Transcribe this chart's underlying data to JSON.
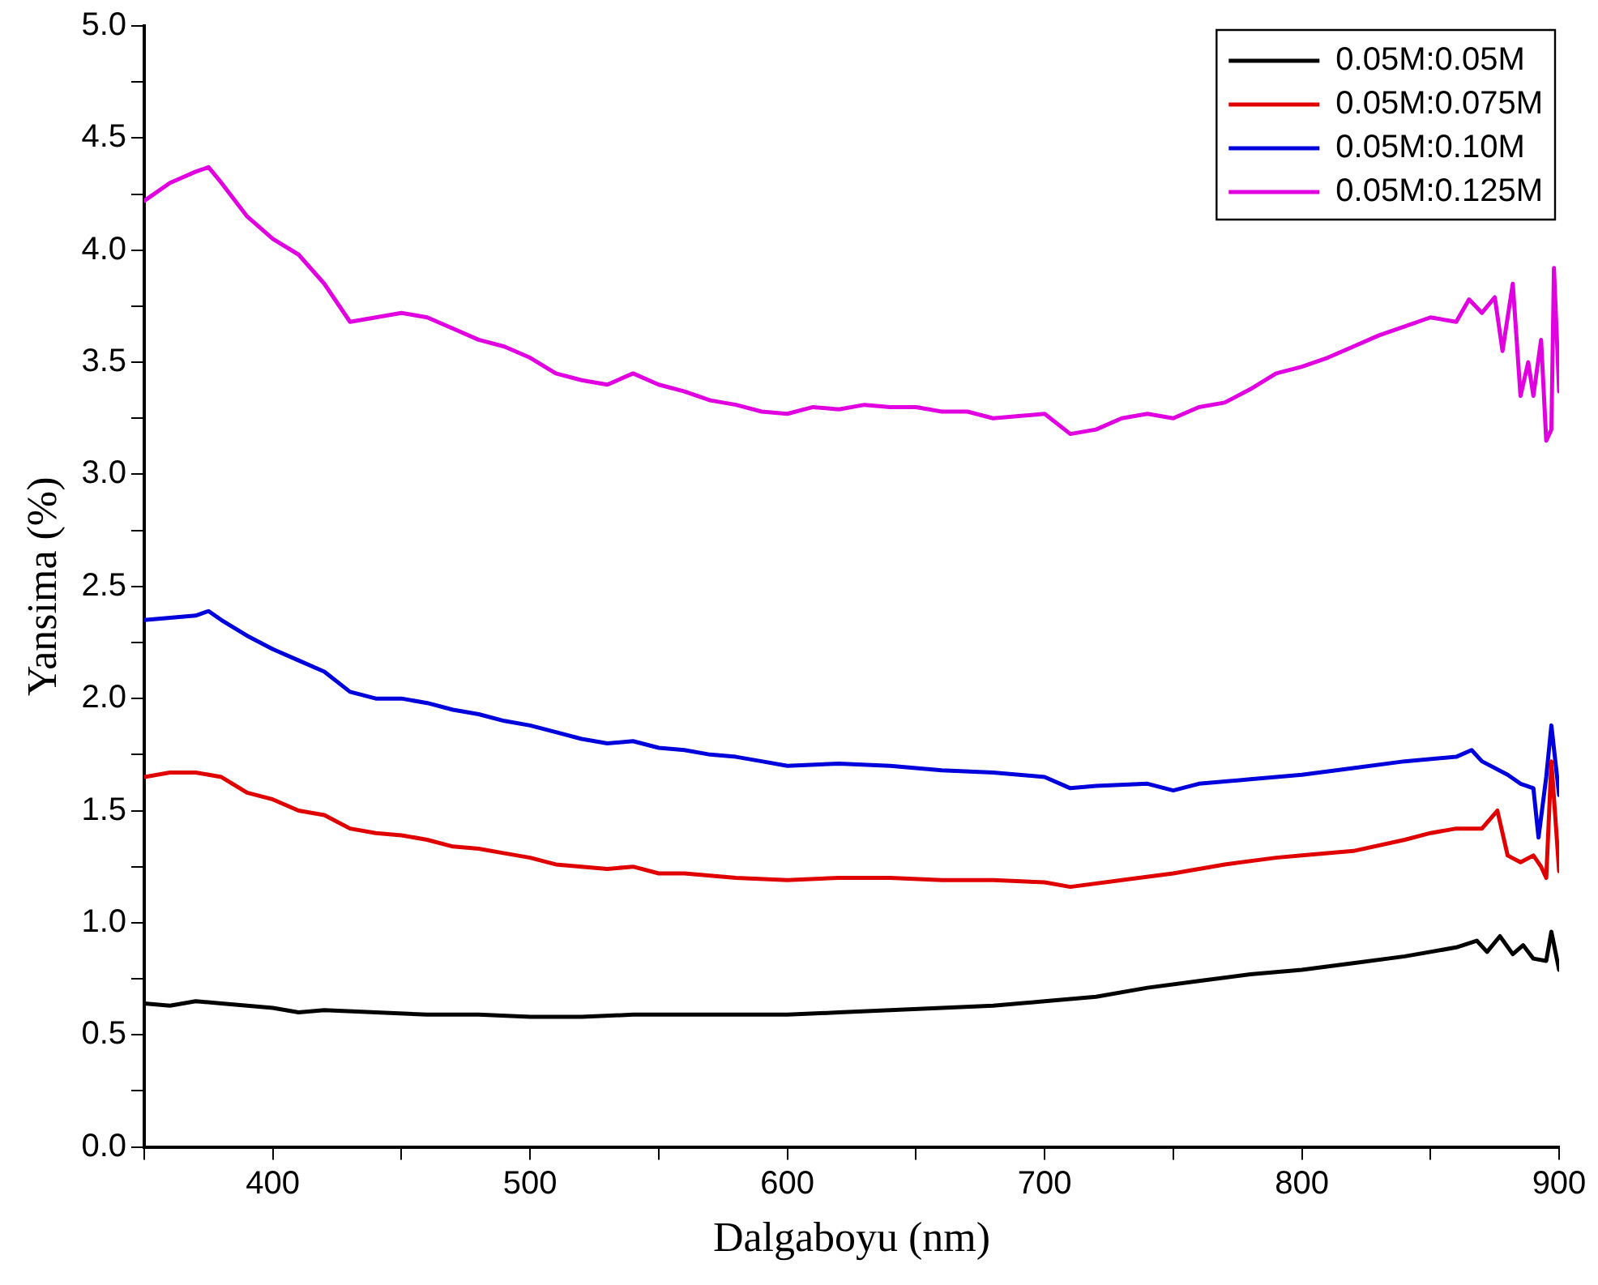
{
  "chart_data": {
    "type": "line",
    "xlabel": "Dalgaboyu (nm)",
    "ylabel": "Yansima (%)",
    "xlim": [
      350,
      900
    ],
    "ylim": [
      0,
      5
    ],
    "xticks": [
      {
        "value": 350,
        "label": null
      },
      400,
      {
        "value": 450,
        "label": null
      },
      500,
      {
        "value": 550,
        "label": null
      },
      600,
      {
        "value": 650,
        "label": null
      },
      700,
      {
        "value": 750,
        "label": null
      },
      800,
      {
        "value": 850,
        "label": null
      },
      900
    ],
    "yticks": [
      {
        "value": 0,
        "label": "0.0"
      },
      {
        "value": 0.25,
        "label": null
      },
      {
        "value": 0.5,
        "label": "0.5"
      },
      {
        "value": 0.75,
        "label": null
      },
      {
        "value": 1,
        "label": "1.0"
      },
      {
        "value": 1.25,
        "label": null
      },
      {
        "value": 1.5,
        "label": "1.5"
      },
      {
        "value": 1.75,
        "label": null
      },
      {
        "value": 2,
        "label": "2.0"
      },
      {
        "value": 2.25,
        "label": null
      },
      {
        "value": 2.5,
        "label": "2.5"
      },
      {
        "value": 2.75,
        "label": null
      },
      {
        "value": 3,
        "label": "3.0"
      },
      {
        "value": 3.25,
        "label": null
      },
      {
        "value": 3.5,
        "label": "3.5"
      },
      {
        "value": 3.75,
        "label": null
      },
      {
        "value": 4,
        "label": "4.0"
      },
      {
        "value": 4.25,
        "label": null
      },
      {
        "value": 4.5,
        "label": "4.5"
      },
      {
        "value": 4.75,
        "label": null
      },
      {
        "value": 5,
        "label": "5.0"
      }
    ],
    "grid": false,
    "legend": "top right",
    "marker": "none",
    "line_style": "solid",
    "series": [
      {
        "name": "0.05M:0.05M",
        "color": "#000000",
        "x": [
          350,
          360,
          370,
          380,
          400,
          410,
          420,
          440,
          460,
          480,
          500,
          520,
          540,
          560,
          580,
          600,
          620,
          640,
          660,
          680,
          700,
          720,
          740,
          760,
          780,
          800,
          820,
          840,
          860,
          868,
          872,
          877,
          882,
          886,
          890,
          895,
          897,
          900
        ],
        "values": [
          0.64,
          0.63,
          0.65,
          0.64,
          0.62,
          0.6,
          0.61,
          0.6,
          0.59,
          0.59,
          0.58,
          0.58,
          0.59,
          0.59,
          0.59,
          0.59,
          0.6,
          0.61,
          0.62,
          0.63,
          0.65,
          0.67,
          0.71,
          0.74,
          0.77,
          0.79,
          0.82,
          0.85,
          0.89,
          0.92,
          0.87,
          0.94,
          0.86,
          0.9,
          0.84,
          0.83,
          0.96,
          0.79
        ]
      },
      {
        "name": "0.05M:0.075M",
        "color": "#e00000",
        "x": [
          350,
          360,
          370,
          380,
          390,
          400,
          410,
          420,
          430,
          440,
          450,
          460,
          470,
          480,
          490,
          500,
          510,
          520,
          530,
          540,
          550,
          560,
          580,
          600,
          620,
          640,
          660,
          680,
          700,
          710,
          730,
          750,
          770,
          790,
          800,
          820,
          840,
          850,
          860,
          870,
          876,
          880,
          885,
          890,
          893,
          895,
          897,
          900
        ],
        "values": [
          1.65,
          1.67,
          1.67,
          1.65,
          1.58,
          1.55,
          1.5,
          1.48,
          1.42,
          1.4,
          1.39,
          1.37,
          1.34,
          1.33,
          1.31,
          1.29,
          1.26,
          1.25,
          1.24,
          1.25,
          1.22,
          1.22,
          1.2,
          1.19,
          1.2,
          1.2,
          1.19,
          1.19,
          1.18,
          1.16,
          1.19,
          1.22,
          1.26,
          1.29,
          1.3,
          1.32,
          1.37,
          1.4,
          1.42,
          1.42,
          1.5,
          1.3,
          1.27,
          1.3,
          1.25,
          1.2,
          1.72,
          1.23
        ]
      },
      {
        "name": "0.05M:0.10M",
        "color": "#0000dd",
        "x": [
          350,
          360,
          370,
          375,
          380,
          390,
          400,
          410,
          420,
          430,
          440,
          450,
          460,
          470,
          480,
          490,
          500,
          510,
          520,
          530,
          540,
          550,
          560,
          570,
          580,
          590,
          600,
          620,
          640,
          660,
          680,
          700,
          710,
          720,
          740,
          750,
          760,
          780,
          800,
          820,
          840,
          860,
          866,
          870,
          880,
          885,
          890,
          892,
          895,
          897,
          900
        ],
        "values": [
          2.35,
          2.36,
          2.37,
          2.39,
          2.35,
          2.28,
          2.22,
          2.17,
          2.12,
          2.03,
          2.0,
          2.0,
          1.98,
          1.95,
          1.93,
          1.9,
          1.88,
          1.85,
          1.82,
          1.8,
          1.81,
          1.78,
          1.77,
          1.75,
          1.74,
          1.72,
          1.7,
          1.71,
          1.7,
          1.68,
          1.67,
          1.65,
          1.6,
          1.61,
          1.62,
          1.59,
          1.62,
          1.64,
          1.66,
          1.69,
          1.72,
          1.74,
          1.77,
          1.72,
          1.66,
          1.62,
          1.6,
          1.38,
          1.65,
          1.88,
          1.57
        ]
      },
      {
        "name": "0.05M:0.125M",
        "color": "#e000e0",
        "x": [
          350,
          360,
          370,
          375,
          380,
          390,
          400,
          410,
          420,
          430,
          440,
          450,
          460,
          470,
          480,
          490,
          500,
          510,
          520,
          530,
          540,
          550,
          560,
          570,
          580,
          590,
          600,
          610,
          620,
          630,
          640,
          650,
          660,
          670,
          680,
          690,
          700,
          710,
          720,
          730,
          740,
          750,
          760,
          770,
          780,
          790,
          800,
          810,
          820,
          830,
          840,
          850,
          860,
          865,
          870,
          875,
          878,
          882,
          885,
          888,
          890,
          893,
          895,
          897,
          898,
          900
        ],
        "values": [
          4.22,
          4.3,
          4.35,
          4.37,
          4.3,
          4.15,
          4.05,
          3.98,
          3.85,
          3.68,
          3.7,
          3.72,
          3.7,
          3.65,
          3.6,
          3.57,
          3.52,
          3.45,
          3.42,
          3.4,
          3.45,
          3.4,
          3.37,
          3.33,
          3.31,
          3.28,
          3.27,
          3.3,
          3.29,
          3.31,
          3.3,
          3.3,
          3.28,
          3.28,
          3.25,
          3.26,
          3.27,
          3.18,
          3.2,
          3.25,
          3.27,
          3.25,
          3.3,
          3.32,
          3.38,
          3.45,
          3.48,
          3.52,
          3.57,
          3.62,
          3.66,
          3.7,
          3.68,
          3.78,
          3.72,
          3.79,
          3.55,
          3.85,
          3.35,
          3.5,
          3.35,
          3.6,
          3.15,
          3.2,
          3.92,
          3.37
        ]
      }
    ]
  }
}
